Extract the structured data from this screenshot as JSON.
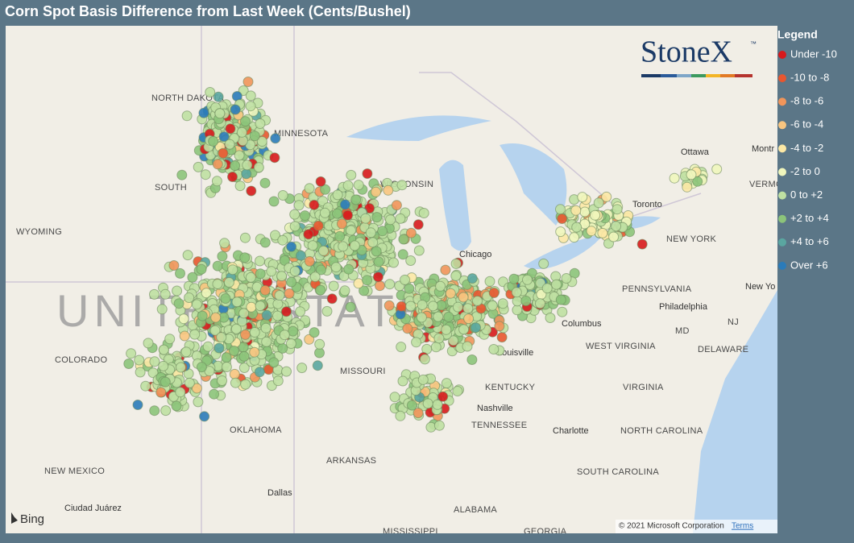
{
  "header": {
    "title": "Corn Spot Basis Difference from Last Week (Cents/Bushel)"
  },
  "legend": {
    "title": "Legend",
    "items": [
      {
        "label": "Under -10",
        "color": "#d7191c"
      },
      {
        "label": "-10 to -8",
        "color": "#e8562f"
      },
      {
        "label": "-8 to -6",
        "color": "#f1955a"
      },
      {
        "label": "-6 to -4",
        "color": "#f8c580"
      },
      {
        "label": "-4 to -2",
        "color": "#fce8a5"
      },
      {
        "label": "-2 to 0",
        "color": "#f0f6bc"
      },
      {
        "label": "0 to +2",
        "color": "#bfe0a2"
      },
      {
        "label": "+2 to +4",
        "color": "#8cc47a"
      },
      {
        "label": "+4 to +6",
        "color": "#5aa6a0"
      },
      {
        "label": "Over +6",
        "color": "#2b7bb9"
      }
    ]
  },
  "logo": {
    "text": "StoneX",
    "mark": "™"
  },
  "map": {
    "labels": [
      "WYOMING",
      "COLORADO",
      "NEW MEXICO",
      "OKLAHOMA",
      "ARKANSAS",
      "MISSOURI",
      "KENTUCKY",
      "TENNESSEE",
      "WEST VIRGINIA",
      "VIRGINIA",
      "NORTH CAROLINA",
      "SOUTH CAROLINA",
      "NEW YORK",
      "PENNSYLVANIA",
      "DELAWARE",
      "MD",
      "NJ",
      "ALABAMA",
      "GEORGIA",
      "MISSISSIPPI",
      "MINNESOTA",
      "WISCONSIN",
      "NORTH DAKOTA",
      "SOUTH",
      "Chicago",
      "Columbus",
      "Louisville",
      "Nashville",
      "Dallas",
      "Toronto",
      "Ottawa",
      "Philadelphia",
      "Charlotte",
      "Ciudad Juárez",
      "Montr",
      "New Yo",
      "VERMO"
    ],
    "watermark": "UNITED STATES",
    "provider": "Bing",
    "copyright": "© 2021 Microsoft Corporation",
    "terms": "Terms"
  }
}
